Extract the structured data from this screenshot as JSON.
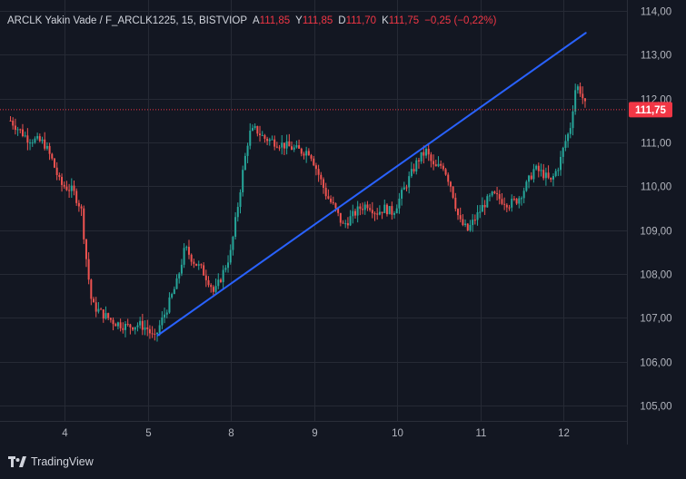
{
  "header": {
    "symbol": "ARCLK Yakin Vade / F_ARCLK1225, 15, BISTVIOP",
    "ohlc": [
      {
        "label": "A",
        "value": "111,85"
      },
      {
        "label": "Y",
        "value": "111,85"
      },
      {
        "label": "D",
        "value": "111,70"
      },
      {
        "label": "K",
        "value": "111,75"
      }
    ],
    "change": "−0,25 (−0,22%)"
  },
  "brand": {
    "name": "TradingView"
  },
  "colors": {
    "background": "#131722",
    "up": "#26a69a",
    "down": "#ef5350",
    "trendline": "#2962ff",
    "price_line": "#f23645",
    "grid": "#262a35"
  },
  "chart_data": {
    "type": "candlestick",
    "x_axis": {
      "ticks": [
        "4",
        "5",
        "8",
        "9",
        "10",
        "11",
        "12"
      ]
    },
    "y_axis": {
      "range": [
        104.65,
        114.25
      ],
      "ticks": [
        "105,00",
        "106,00",
        "107,00",
        "108,00",
        "109,00",
        "110,00",
        "111,00",
        "112,00",
        "113,00",
        "114,00"
      ],
      "tick_values": [
        105,
        106,
        107,
        108,
        109,
        110,
        111,
        112,
        113,
        114
      ]
    },
    "last_price": {
      "value": 111.75,
      "label": "111,75"
    },
    "trendline": {
      "from": {
        "day_index": 1.12,
        "price": 106.6
      },
      "to": {
        "day_index": 6.27,
        "price": 113.5
      }
    },
    "price_path": [
      [
        -0.65,
        111.5
      ],
      [
        -0.45,
        111.1
      ],
      [
        -0.25,
        111.0
      ],
      [
        -0.15,
        110.6
      ],
      [
        -0.05,
        110.05
      ],
      [
        0.1,
        109.9
      ],
      [
        0.2,
        109.5
      ],
      [
        0.27,
        108.2
      ],
      [
        0.33,
        107.3
      ],
      [
        0.45,
        107.1
      ],
      [
        0.6,
        106.9
      ],
      [
        0.75,
        106.8
      ],
      [
        0.9,
        106.85
      ],
      [
        1.0,
        106.75
      ],
      [
        1.08,
        106.5
      ],
      [
        1.15,
        106.85
      ],
      [
        1.25,
        107.3
      ],
      [
        1.35,
        107.8
      ],
      [
        1.45,
        108.6
      ],
      [
        1.55,
        108.3
      ],
      [
        1.65,
        108.1
      ],
      [
        1.75,
        107.8
      ],
      [
        1.8,
        107.55
      ],
      [
        1.9,
        108.0
      ],
      [
        2.0,
        108.5
      ],
      [
        2.08,
        109.5
      ],
      [
        2.15,
        110.4
      ],
      [
        2.22,
        111.2
      ],
      [
        2.3,
        111.3
      ],
      [
        2.4,
        111.1
      ],
      [
        2.55,
        111.0
      ],
      [
        2.7,
        110.9
      ],
      [
        2.85,
        110.8
      ],
      [
        2.95,
        110.8
      ],
      [
        3.05,
        110.3
      ],
      [
        3.15,
        109.8
      ],
      [
        3.25,
        109.5
      ],
      [
        3.35,
        109.1
      ],
      [
        3.45,
        109.3
      ],
      [
        3.55,
        109.5
      ],
      [
        3.65,
        109.6
      ],
      [
        3.75,
        109.4
      ],
      [
        3.85,
        109.5
      ],
      [
        3.95,
        109.4
      ],
      [
        4.05,
        109.8
      ],
      [
        4.15,
        110.2
      ],
      [
        4.25,
        110.6
      ],
      [
        4.35,
        110.8
      ],
      [
        4.45,
        110.4
      ],
      [
        4.55,
        110.5
      ],
      [
        4.65,
        110.0
      ],
      [
        4.75,
        109.2
      ],
      [
        4.85,
        109.0
      ],
      [
        4.95,
        109.3
      ],
      [
        5.05,
        109.6
      ],
      [
        5.15,
        109.8
      ],
      [
        5.25,
        109.7
      ],
      [
        5.35,
        109.6
      ],
      [
        5.45,
        109.7
      ],
      [
        5.55,
        110.0
      ],
      [
        5.65,
        110.4
      ],
      [
        5.75,
        110.3
      ],
      [
        5.85,
        110.1
      ],
      [
        5.95,
        110.5
      ],
      [
        6.02,
        111.0
      ],
      [
        6.08,
        111.3
      ],
      [
        6.15,
        112.3
      ],
      [
        6.2,
        112.2
      ],
      [
        6.27,
        111.8
      ]
    ]
  }
}
